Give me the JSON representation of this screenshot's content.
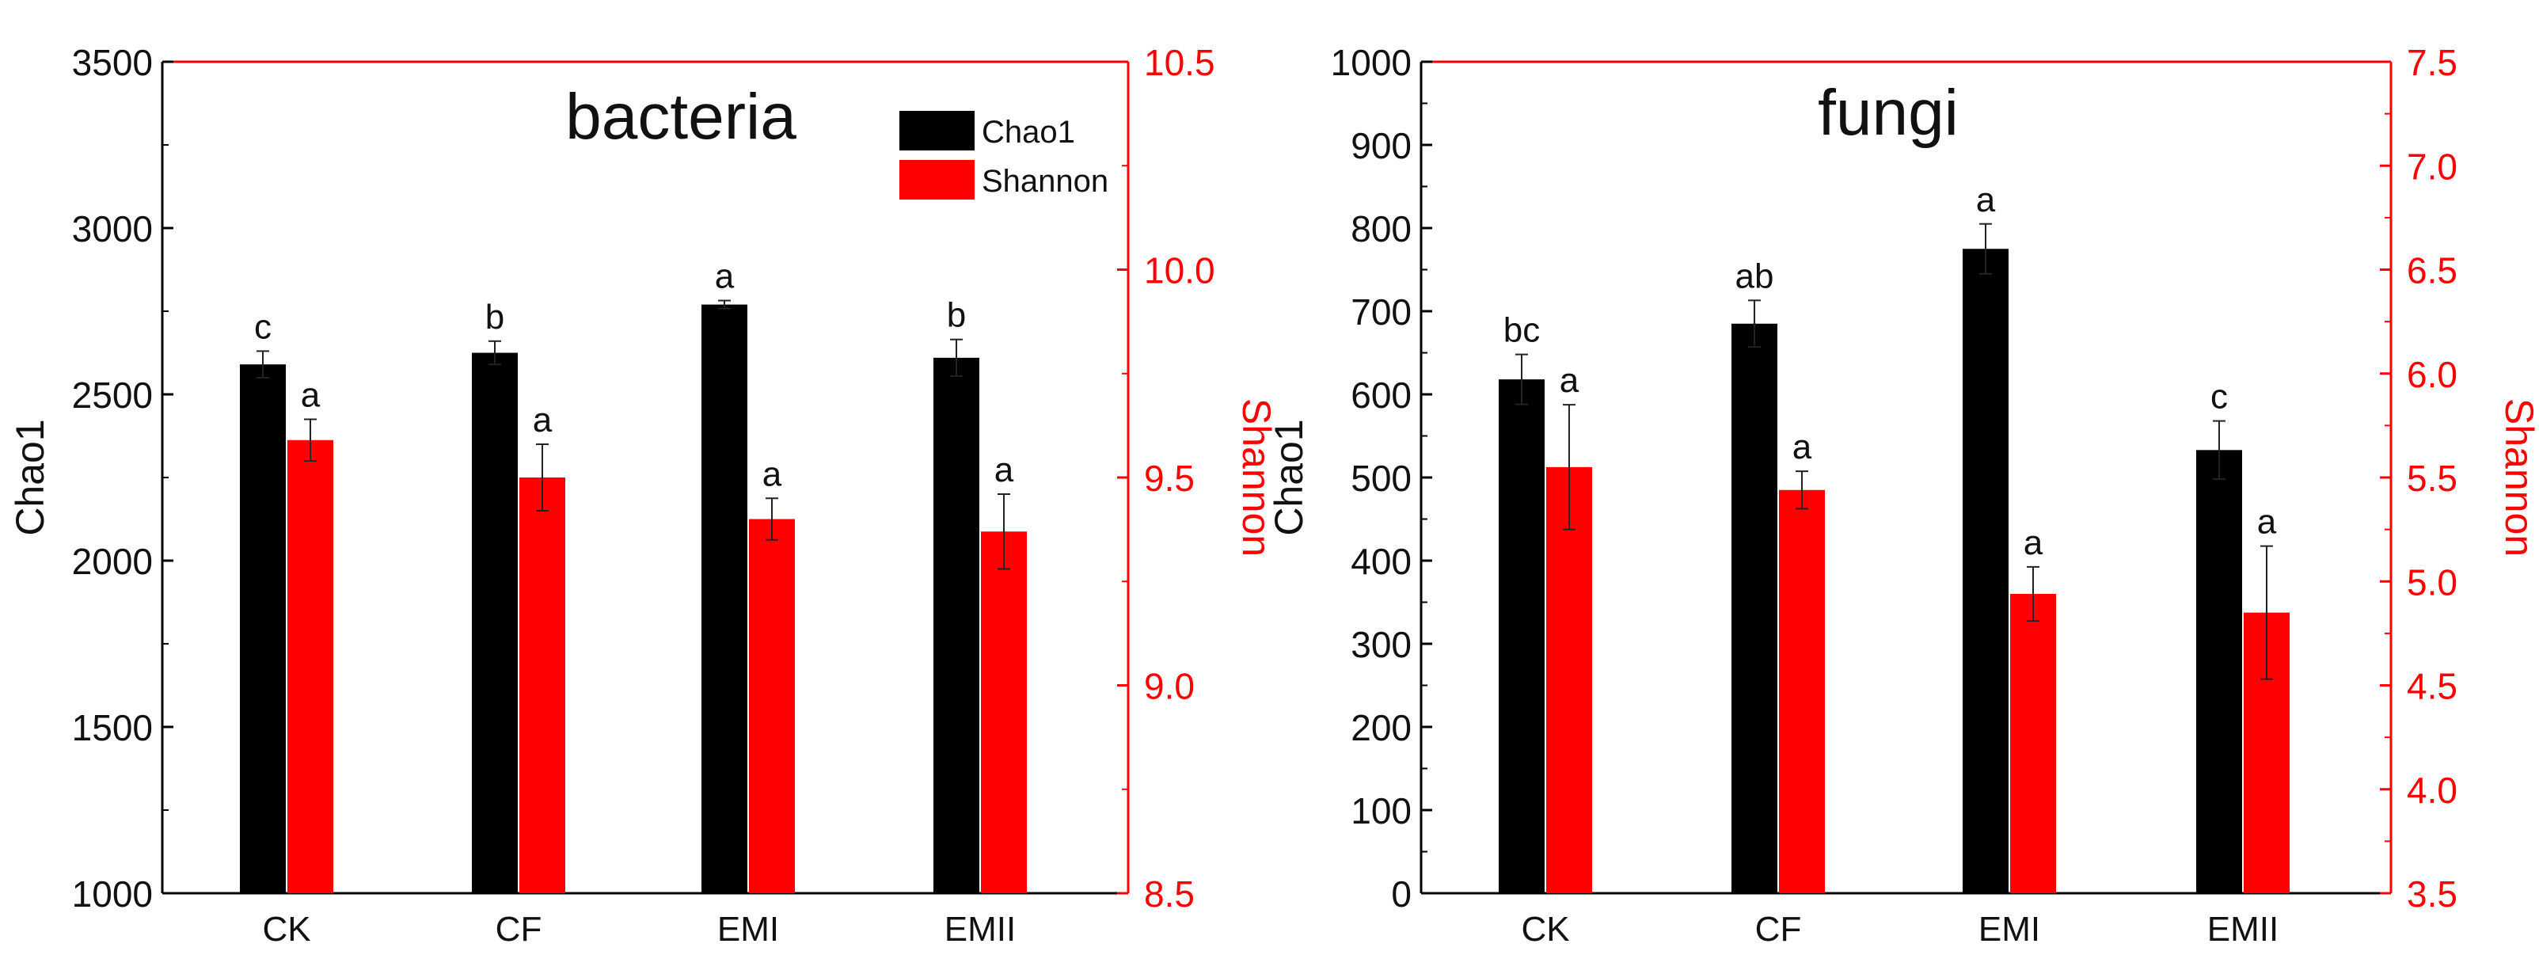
{
  "chart_data": [
    {
      "type": "bar",
      "title": "bacteria",
      "categories": [
        "CK",
        "CF",
        "EMI",
        "EMII"
      ],
      "ylabel": "Chao1",
      "ylabel_right": "Shannon",
      "ylim": [
        1000,
        3500
      ],
      "ylim_right": [
        8.5,
        10.5
      ],
      "yticks": [
        "1000",
        "1500",
        "2000",
        "2500",
        "3000",
        "3500"
      ],
      "yticks_right": [
        "8.5",
        "9.0",
        "9.5",
        "10.0",
        "10.5"
      ],
      "legend": {
        "position": "top-right"
      },
      "series": [
        {
          "name": "Chao1",
          "axis": "left",
          "color": "#000000",
          "values": [
            2590,
            2625,
            2770,
            2610
          ],
          "errors": [
            40,
            35,
            12,
            55
          ],
          "labels": [
            "c",
            "b",
            "a",
            "b"
          ]
        },
        {
          "name": "Shannon",
          "axis": "right",
          "color": "#ff0000",
          "values": [
            9.59,
            9.5,
            9.4,
            9.37
          ],
          "errors": [
            0.05,
            0.08,
            0.05,
            0.09
          ],
          "labels": [
            "a",
            "a",
            "a",
            "a"
          ]
        }
      ]
    },
    {
      "type": "bar",
      "title": "fungi",
      "categories": [
        "CK",
        "CF",
        "EMI",
        "EMII"
      ],
      "ylabel": "Chao1",
      "ylabel_right": "Shannon",
      "ylim": [
        0,
        1000
      ],
      "ylim_right": [
        3.5,
        7.5
      ],
      "yticks": [
        "0",
        "100",
        "200",
        "300",
        "400",
        "500",
        "600",
        "700",
        "800",
        "900",
        "1000"
      ],
      "yticks_right": [
        "3.5",
        "4.0",
        "4.5",
        "5.0",
        "5.5",
        "6.0",
        "6.5",
        "7.0",
        "7.5"
      ],
      "series": [
        {
          "name": "Chao1",
          "axis": "left",
          "color": "#000000",
          "values": [
            618,
            685,
            775,
            533
          ],
          "errors": [
            30,
            28,
            30,
            35
          ],
          "labels": [
            "bc",
            "ab",
            "a",
            "c"
          ]
        },
        {
          "name": "Shannon",
          "axis": "right",
          "color": "#ff0000",
          "values": [
            5.55,
            5.44,
            4.94,
            4.85
          ],
          "errors": [
            0.3,
            0.09,
            0.13,
            0.32
          ],
          "labels": [
            "a",
            "a",
            "a",
            "a"
          ]
        }
      ]
    }
  ]
}
